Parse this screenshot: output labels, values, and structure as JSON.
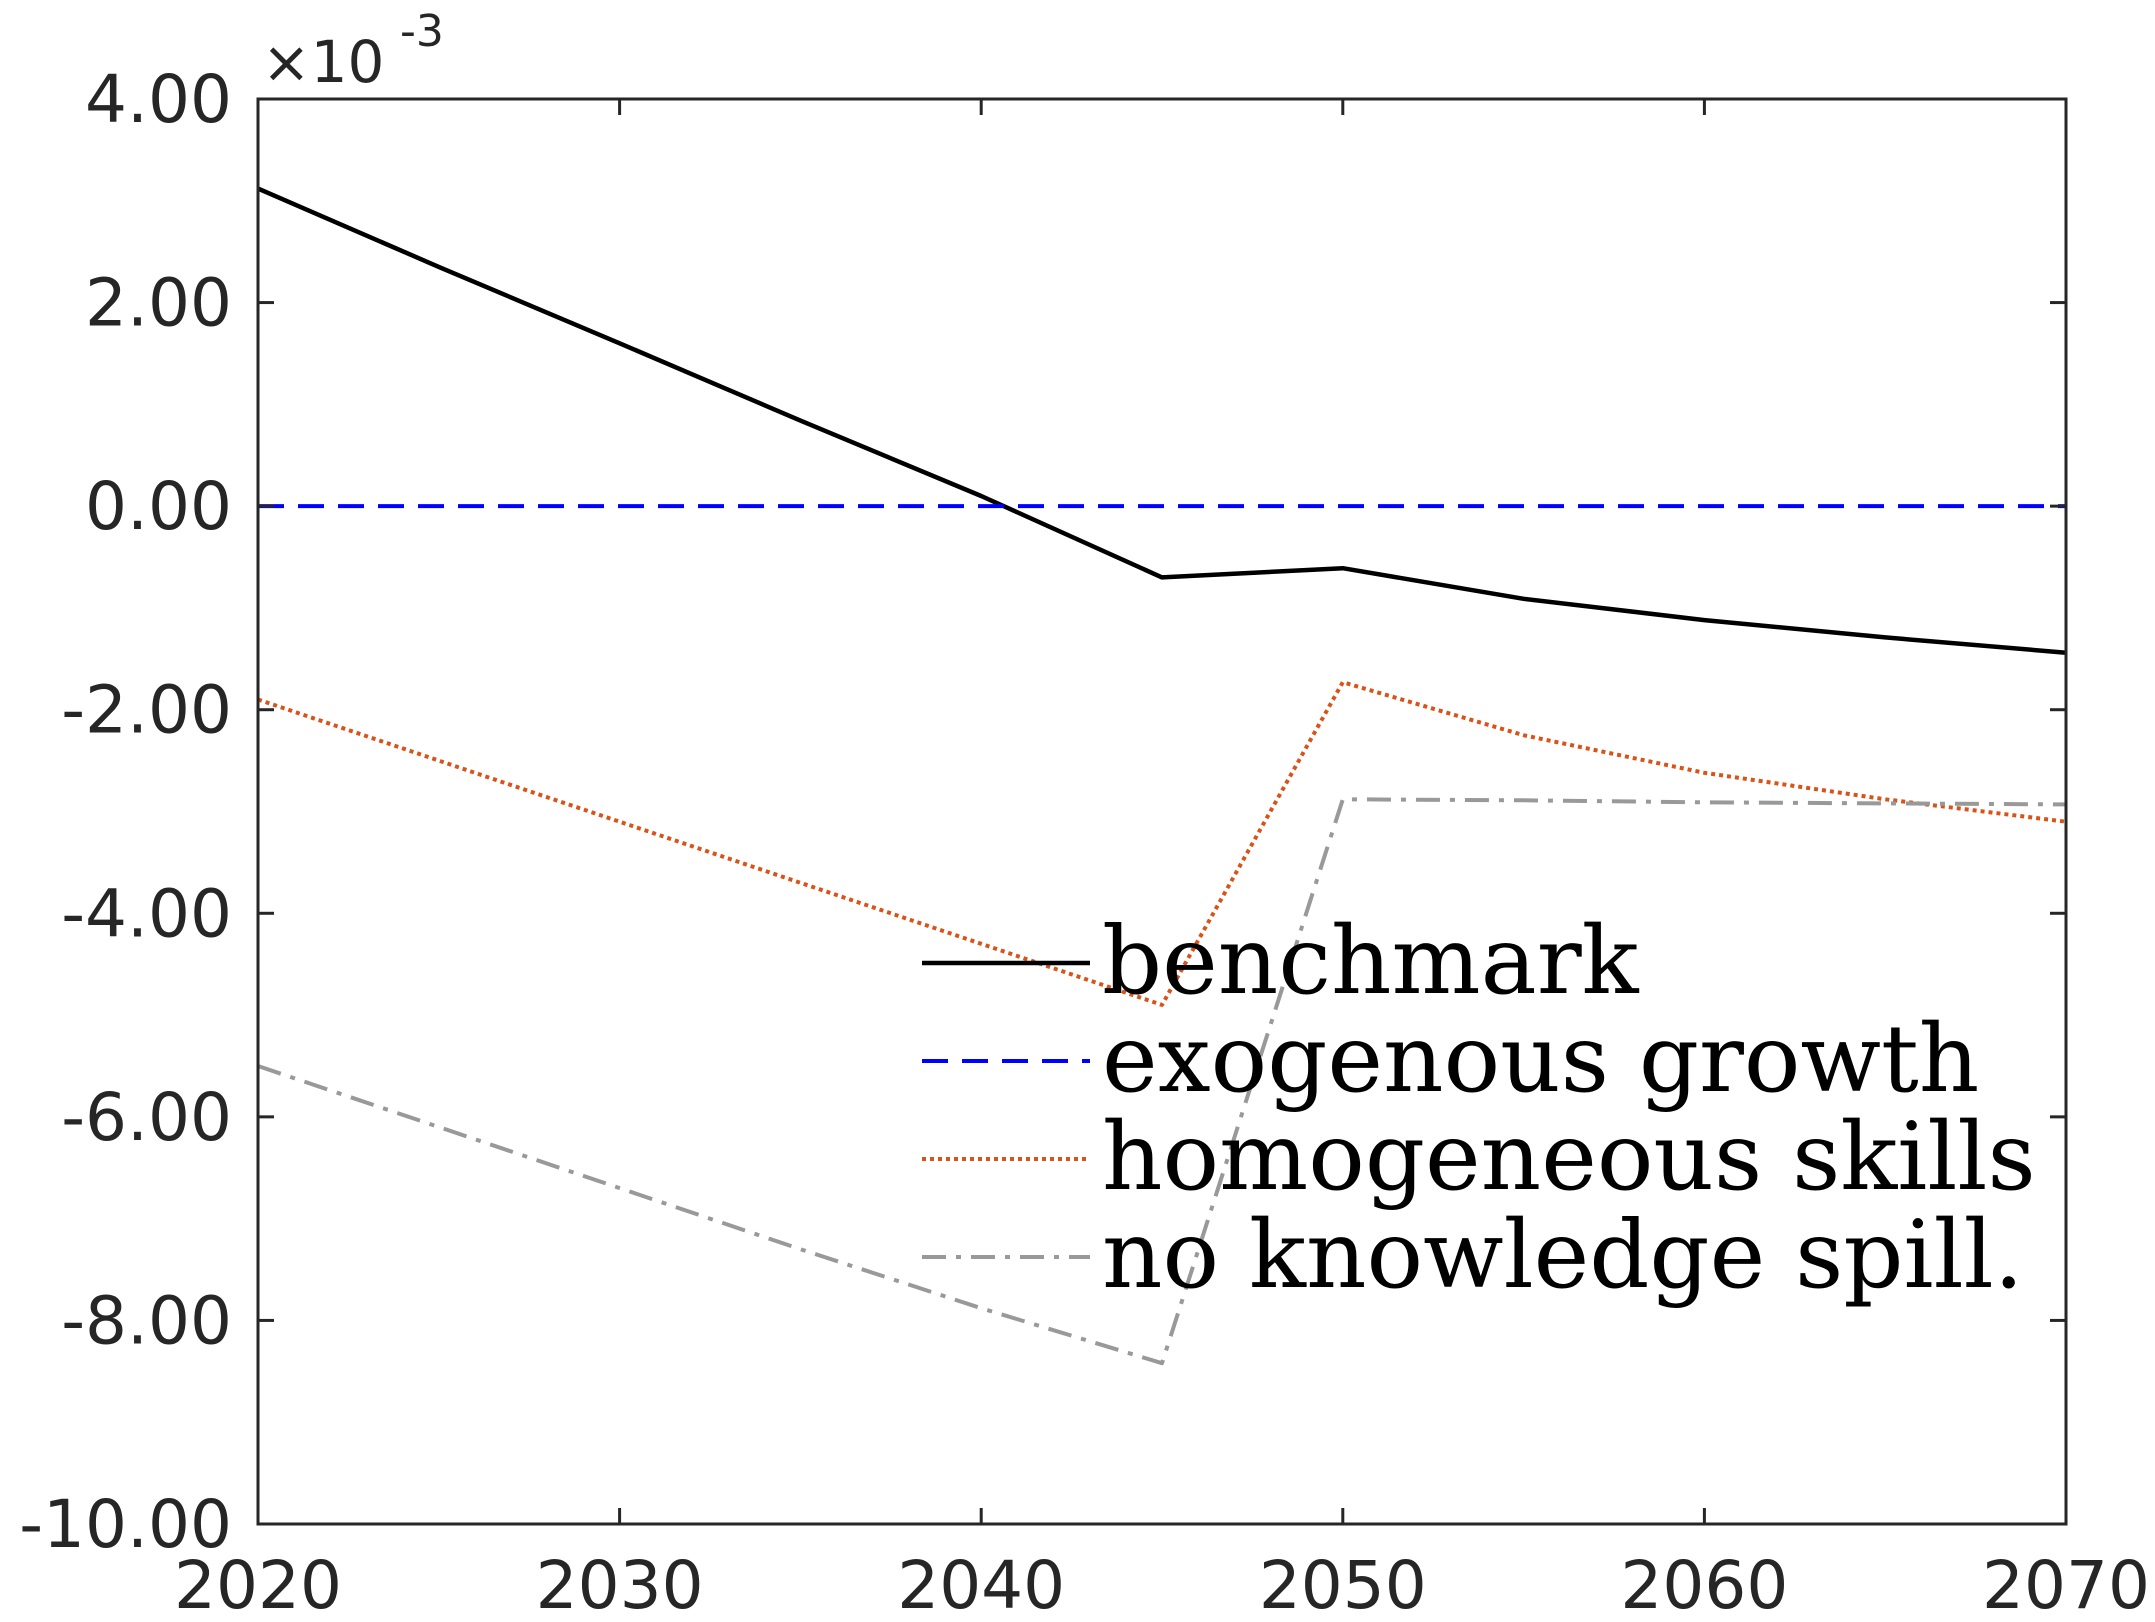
{
  "chart_data": {
    "type": "line",
    "title": "",
    "xlabel": "",
    "ylabel": "",
    "y_exponent_label": "×10",
    "y_exponent_power": "-3",
    "xlim": [
      2020,
      2070
    ],
    "ylim": [
      -10.0,
      4.0
    ],
    "x_ticks": [
      2020,
      2030,
      2040,
      2050,
      2060,
      2070
    ],
    "x_tick_labels": [
      "2020",
      "2030",
      "2040",
      "2050",
      "2060",
      "2070"
    ],
    "y_ticks": [
      4,
      2,
      0,
      -2,
      -4,
      -6,
      -8,
      -10
    ],
    "y_tick_labels": [
      "4.00",
      "2.00",
      "0.00",
      "-2.00",
      "-4.00",
      "-6.00",
      "-8.00",
      "-10.00"
    ],
    "grid": false,
    "legend_position": "bottom-right",
    "series": [
      {
        "name": "benchmark",
        "color": "#000000",
        "dash": "solid",
        "x": [
          2020,
          2025,
          2030,
          2035,
          2040,
          2045,
          2050,
          2055,
          2060,
          2065,
          2070
        ],
        "y": [
          3.12,
          2.35,
          1.6,
          0.84,
          0.1,
          -0.7,
          -0.61,
          -0.91,
          -1.12,
          -1.29,
          -1.44
        ]
      },
      {
        "name": "exogenous growth",
        "color": "#0000ff",
        "dash": "dashed",
        "x": [
          2020,
          2070
        ],
        "y": [
          0.0,
          0.0
        ]
      },
      {
        "name": "homogeneous skills",
        "color": "#d95319",
        "dash": "dotted",
        "x": [
          2020,
          2025,
          2030,
          2035,
          2040,
          2045,
          2050,
          2055,
          2060,
          2065,
          2070
        ],
        "y": [
          -1.9,
          -2.5,
          -3.1,
          -3.7,
          -4.3,
          -4.9,
          -1.73,
          -2.25,
          -2.62,
          -2.88,
          -3.1
        ]
      },
      {
        "name": "no knowledge spill.",
        "color": "#999999",
        "dash": "dashdot",
        "x": [
          2020,
          2025,
          2030,
          2035,
          2040,
          2045,
          2050,
          2055,
          2060,
          2065,
          2070
        ],
        "y": [
          -5.5,
          -6.1,
          -6.7,
          -7.3,
          -7.88,
          -8.42,
          -2.88,
          -2.89,
          -2.91,
          -2.92,
          -2.93
        ]
      }
    ]
  }
}
